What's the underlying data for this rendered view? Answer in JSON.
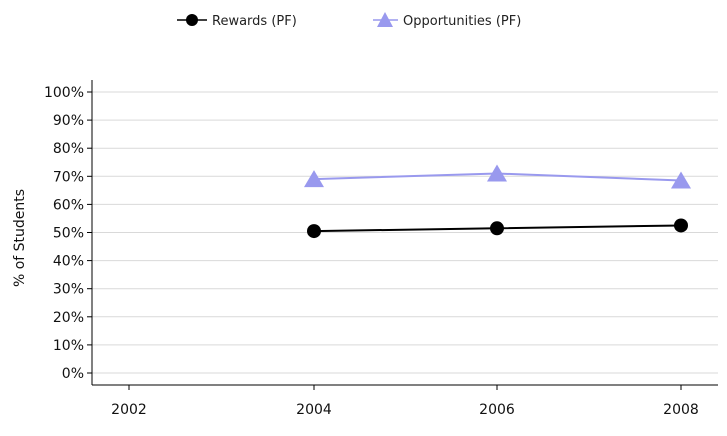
{
  "chart_data": {
    "type": "line",
    "x": [
      "2002",
      "2004",
      "2006",
      "2008"
    ],
    "ylabel": "% of Students",
    "ylim": [
      0,
      100
    ],
    "y_ticks": [
      "0%",
      "10%",
      "20%",
      "30%",
      "40%",
      "50%",
      "60%",
      "70%",
      "80%",
      "90%",
      "100%"
    ],
    "grid": "horizontal",
    "legend_position": "top-center",
    "series": [
      {
        "name": "Rewards (PF)",
        "marker": "circle",
        "color": "#000000",
        "values": [
          null,
          50.5,
          51.5,
          52.5
        ]
      },
      {
        "name": "Opportunities (PF)",
        "marker": "triangle",
        "color": "#9999ee",
        "values": [
          null,
          69,
          71,
          68.5
        ]
      }
    ]
  }
}
